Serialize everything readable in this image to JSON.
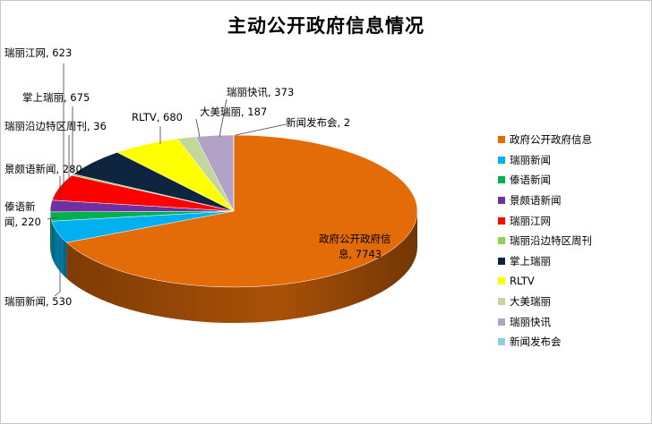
{
  "chart_data": {
    "type": "pie",
    "style": "3d",
    "title": "主动公开政府信息情况",
    "legend_position": "right",
    "series": [
      {
        "name": "",
        "slices": [
          {
            "label": "政府公开政府信息",
            "value": 7743,
            "color": "#E36C09",
            "data_label_lines": [
              "政府公开政府信",
              "息, 7743"
            ]
          },
          {
            "label": "瑞丽新闻",
            "value": 530,
            "color": "#00B0F0",
            "data_label_lines": [
              "瑞丽新闻, 530"
            ]
          },
          {
            "label": "傣语新闻",
            "value": 220,
            "color": "#00B050",
            "data_label_lines": [
              "傣语新",
              "闻, 220"
            ]
          },
          {
            "label": "景颇语新闻",
            "value": 280,
            "color": "#7030A0",
            "data_label_lines": [
              "景颇语新闻, 280"
            ]
          },
          {
            "label": "瑞丽江网",
            "value": 623,
            "color": "#FF0000",
            "data_label_lines": [
              "瑞丽江网, 623"
            ]
          },
          {
            "label": "瑞丽沿边特区周刊",
            "value": 36,
            "color": "#92D050",
            "data_label_lines": [
              "瑞丽沿边特区周刊, 36"
            ]
          },
          {
            "label": "掌上瑞丽",
            "value": 675,
            "color": "#0F243E",
            "data_label_lines": [
              "掌上瑞丽, 675"
            ]
          },
          {
            "label": "RLTV",
            "value": 680,
            "color": "#FFFF00",
            "data_label_lines": [
              "RLTV, 680"
            ]
          },
          {
            "label": "大美瑞丽",
            "value": 187,
            "color": "#C3D69B",
            "data_label_lines": [
              "大美瑞丽, 187"
            ]
          },
          {
            "label": "瑞丽快讯",
            "value": 373,
            "color": "#B2A2C7",
            "data_label_lines": [
              "瑞丽快讯, 373"
            ]
          },
          {
            "label": "新闻发布会",
            "value": 2,
            "color": "#93CDDD",
            "data_label_lines": [
              "新闻发布会, 2"
            ]
          }
        ]
      }
    ]
  }
}
